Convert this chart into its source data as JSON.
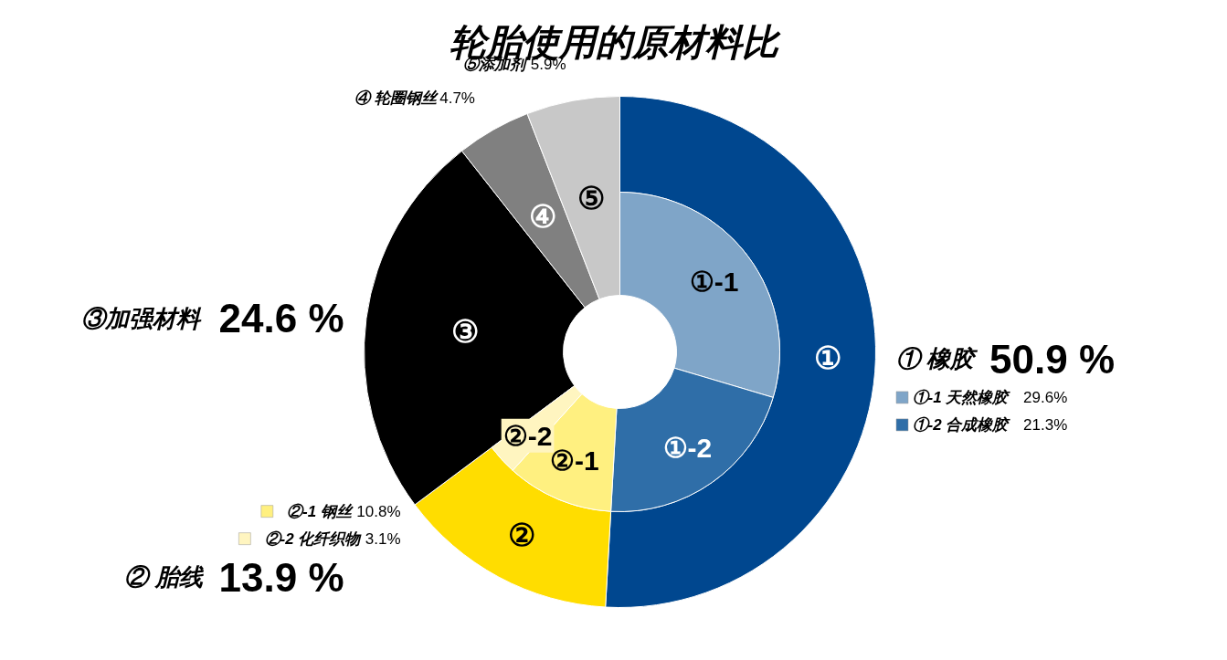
{
  "chart_data": {
    "type": "donut",
    "title": "轮胎使用的原材料比",
    "categories": [
      "① 橡胶",
      "② 胎线",
      "③加强材料",
      "④ 轮圈钢丝",
      "⑤添加剂",
      "①-1 天然橡胶",
      "①-2 合成橡胶",
      "②-1 钢丝",
      "②-2 化纤织物"
    ],
    "series": [
      {
        "type": "donut",
        "values": [
          50.9,
          13.9,
          24.6,
          4.7,
          5.9,
          null,
          null,
          null,
          null
        ],
        "value_labels": [
          "50.9 %",
          "13.9 %",
          "24.6 %",
          "4.7%",
          "5.9%",
          null,
          null,
          null,
          null
        ],
        "colors": [
          "#00478f",
          "#ffdd00",
          "#000000",
          "#808080",
          "#c8c8c8",
          null,
          null,
          null,
          null
        ]
      },
      {
        "type": "donut",
        "values": [
          null,
          null,
          null,
          null,
          null,
          29.6,
          21.3,
          10.8,
          3.1
        ],
        "value_labels": [
          null,
          null,
          null,
          null,
          null,
          "29.6%",
          "21.3%",
          "10.8%",
          "3.1%"
        ],
        "colors": [
          null,
          null,
          null,
          null,
          null,
          "#7fa5c8",
          "#2f6ea8",
          "#fff080",
          "#fff5c0"
        ]
      }
    ],
    "legend": "right",
    "annotations": [
      "①",
      "②",
      "③",
      "④",
      "⑤",
      "①-1",
      "①-2",
      "②-1",
      "②-2"
    ]
  }
}
